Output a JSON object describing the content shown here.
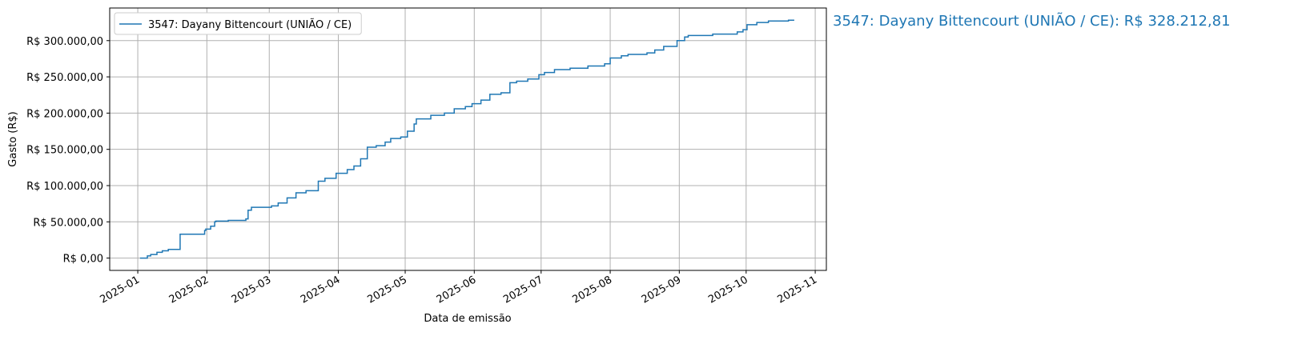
{
  "chart_data": {
    "type": "line",
    "step": true,
    "x_label": "Data de emissão",
    "y_label": "Gasto (R$)",
    "annotation": "3547: Dayany Bittencourt (UNIÃO / CE): R$ 328.212,81",
    "legend": "upper left",
    "grid": true,
    "xlim": [
      -12.6,
      309
    ],
    "ylim": [
      -17000,
      345000
    ],
    "xticks": [
      {
        "value": 0,
        "label": "2025-01"
      },
      {
        "value": 31,
        "label": "2025-02"
      },
      {
        "value": 59,
        "label": "2025-03"
      },
      {
        "value": 90,
        "label": "2025-04"
      },
      {
        "value": 120,
        "label": "2025-05"
      },
      {
        "value": 151,
        "label": "2025-06"
      },
      {
        "value": 181,
        "label": "2025-07"
      },
      {
        "value": 212,
        "label": "2025-08"
      },
      {
        "value": 243,
        "label": "2025-09"
      },
      {
        "value": 273,
        "label": "2025-10"
      },
      {
        "value": 304,
        "label": "2025-11"
      }
    ],
    "yticks": [
      {
        "value": 0,
        "label": "R$ 0,00"
      },
      {
        "value": 50000,
        "label": "R$ 50.000,00"
      },
      {
        "value": 100000,
        "label": "R$ 100.000,00"
      },
      {
        "value": 150000,
        "label": "R$ 150.000,00"
      },
      {
        "value": 200000,
        "label": "R$ 200.000,00"
      },
      {
        "value": 250000,
        "label": "R$ 250.000,00"
      },
      {
        "value": 300000,
        "label": "R$ 300.000,00"
      }
    ],
    "x": [
      1,
      4.3,
      5.8,
      8.6,
      11,
      13.7,
      19,
      30,
      30.5,
      32.7,
      34.5,
      35,
      40.6,
      48.5,
      49.5,
      51,
      60,
      63,
      67,
      71,
      75.5,
      81,
      84,
      89,
      94,
      97,
      100,
      103,
      107,
      111,
      113.5,
      118,
      121,
      124,
      125,
      131.5,
      137.6,
      142,
      147,
      150,
      154,
      158,
      163,
      167,
      170,
      175,
      180,
      182.5,
      187,
      194,
      202,
      209.5,
      212,
      217,
      220,
      228.5,
      232,
      236,
      242,
      245.4,
      247,
      258,
      269,
      271.6,
      273.4,
      277.8,
      283,
      292,
      294.6
    ],
    "series": [
      {
        "name": "3547: Dayany Bittencourt (UNIÃO / CE)",
        "color": "#1f77b4",
        "values": [
          0,
          3000,
          5000,
          8000,
          10000,
          12000,
          33000,
          38000,
          40000,
          44000,
          50000,
          51000,
          52000,
          54000,
          66000,
          70000,
          72000,
          76000,
          83000,
          90000,
          93000,
          106000,
          110000,
          117000,
          122000,
          127000,
          137000,
          153000,
          155000,
          160000,
          165000,
          167000,
          175000,
          185000,
          192000,
          197000,
          200000,
          206000,
          209000,
          213000,
          218000,
          226000,
          228000,
          242000,
          244000,
          247000,
          253000,
          256000,
          260000,
          262000,
          265000,
          268000,
          276000,
          279000,
          281000,
          283000,
          287000,
          292000,
          300000,
          305000,
          307000,
          309000,
          312000,
          315000,
          322000,
          325000,
          327000,
          328212.81,
          328212.81
        ]
      }
    ]
  }
}
